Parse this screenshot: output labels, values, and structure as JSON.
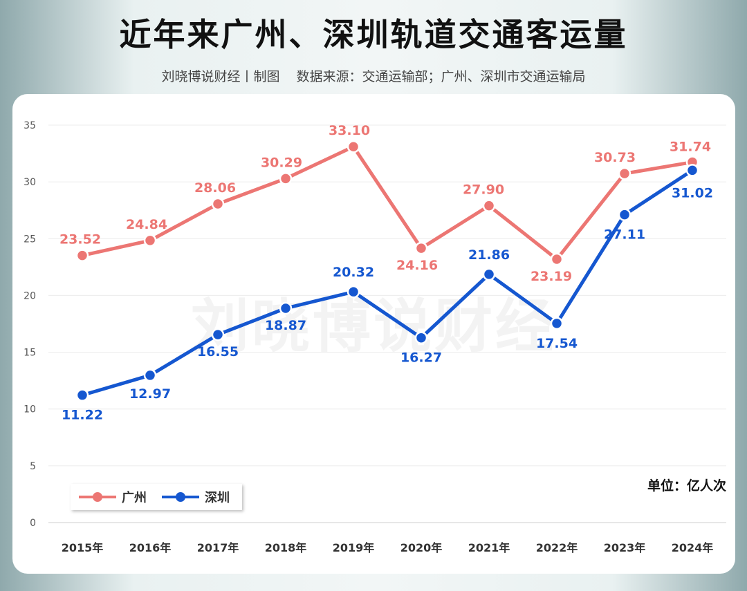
{
  "header": {
    "title": "近年来广州、深圳轨道交通客运量",
    "author": "刘晓博说财经丨制图",
    "source": "数据来源：交通运输部；广州、深圳市交通运输局"
  },
  "watermark": "刘晓博说财经",
  "unit_label": "单位：亿人次",
  "colors": {
    "guangzhou": "#ec7673",
    "shenzhen": "#1557d0"
  },
  "chart_data": {
    "type": "line",
    "categories": [
      "2015年",
      "2016年",
      "2017年",
      "2018年",
      "2019年",
      "2020年",
      "2021年",
      "2022年",
      "2023年",
      "2024年"
    ],
    "series": [
      {
        "name": "广州",
        "values": [
          23.52,
          24.84,
          28.06,
          30.29,
          33.1,
          24.16,
          27.9,
          23.19,
          30.73,
          31.74
        ]
      },
      {
        "name": "深圳",
        "values": [
          11.22,
          12.97,
          16.55,
          18.87,
          20.32,
          16.27,
          21.86,
          17.54,
          27.11,
          31.02
        ]
      }
    ],
    "value_labels": {
      "广州": [
        "23.52",
        "24.84",
        "28.06",
        "30.29",
        "33.10",
        "24.16",
        "27.90",
        "23.19",
        "30.73",
        "31.74"
      ],
      "深圳": [
        "11.22",
        "12.97",
        "16.55",
        "18.87",
        "20.32",
        "16.27",
        "21.86",
        "17.54",
        "27.11",
        "31.02"
      ]
    },
    "ylim": [
      0,
      35
    ],
    "yticks": [
      0,
      5,
      10,
      15,
      20,
      25,
      30,
      35
    ],
    "grid": true,
    "legend": "bottom-left"
  }
}
